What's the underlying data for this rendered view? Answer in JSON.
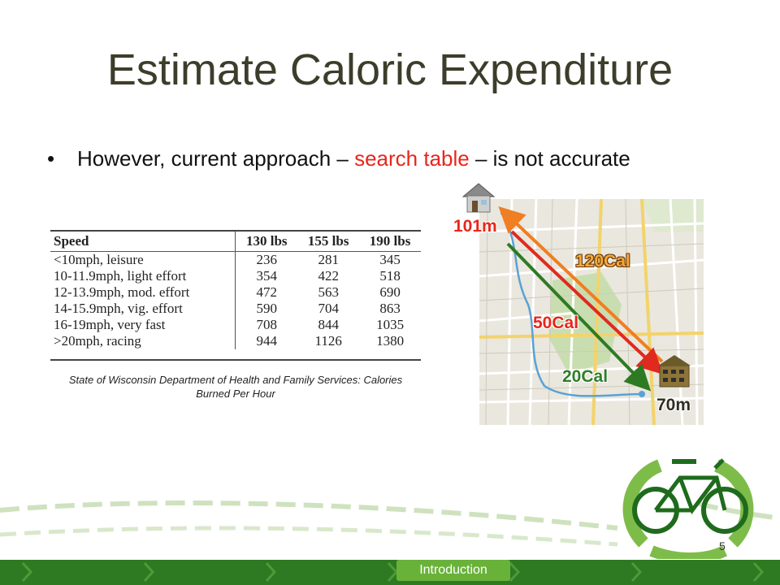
{
  "slide": {
    "title": "Estimate Caloric Expenditure",
    "bullet": {
      "marker": "•",
      "text_before": "However, current approach – ",
      "highlight": "search table",
      "text_after": " – is not accurate"
    },
    "table": {
      "headers": [
        "Speed",
        "130 lbs",
        "155 lbs",
        "190 lbs"
      ],
      "rows": [
        [
          "<10mph, leisure",
          "236",
          "281",
          "345"
        ],
        [
          "10-11.9mph, light effort",
          "354",
          "422",
          "518"
        ],
        [
          "12-13.9mph, mod. effort",
          "472",
          "563",
          "690"
        ],
        [
          "14-15.9mph, vig. effort",
          "590",
          "704",
          "863"
        ],
        [
          "16-19mph, very fast",
          "708",
          "844",
          "1035"
        ],
        [
          ">20mph, racing",
          "944",
          "1126",
          "1380"
        ]
      ]
    },
    "caption": "State of Wisconsin Department of Health and Family Services: Calories Burned Per Hour",
    "map_labels": {
      "start_elevation": "101m",
      "end_elevation": "70m",
      "cal_orange": "120Cal",
      "cal_red": "50Cal",
      "cal_green": "20Cal"
    },
    "colors": {
      "title": "#3d3d2b",
      "highlight": "#e8261c",
      "footer": "#2e7a23",
      "footer_tab": "#69b23a"
    },
    "page_number": "5",
    "footer_tab": "Introduction"
  }
}
